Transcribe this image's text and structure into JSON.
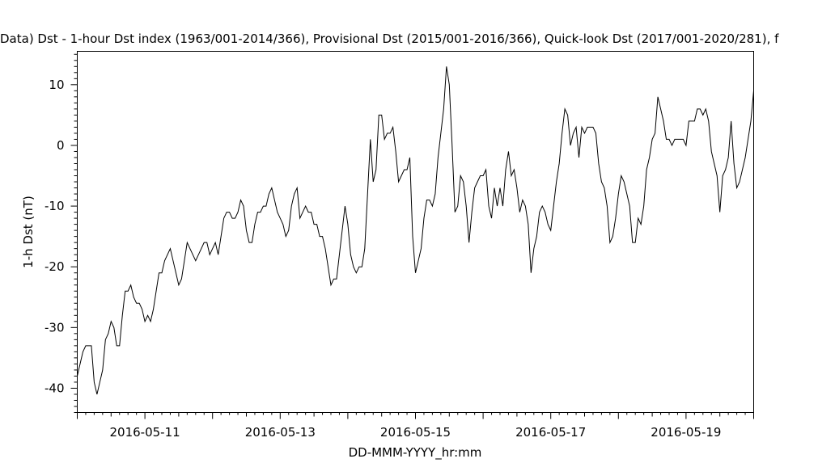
{
  "chart_data": {
    "type": "line",
    "title": "Data)  Dst - 1-hour Dst index (1963/001-2014/366), Provisional Dst (2015/001-2016/366), Quick-look Dst (2017/001-2020/281), f",
    "xlabel": "DD-MMM-YYYY_hr:mm",
    "ylabel": "1-h Dst (nT)",
    "xlim": [
      "2016-05-10T00:00",
      "2016-05-20T00:00"
    ],
    "ylim": [
      -44,
      15.5
    ],
    "x_ticks": [
      "2016-05-11",
      "2016-05-13",
      "2016-05-15",
      "2016-05-17",
      "2016-05-19"
    ],
    "y_ticks": [
      "10",
      "0",
      "-10",
      "-20",
      "-30",
      "-40"
    ],
    "grid": false,
    "line_color": "#000000",
    "series": [
      {
        "x_start": "2016-05-10T00:00",
        "x_step_hours": 1,
        "values": [
          -38,
          -36,
          -34,
          -33,
          -33,
          -33,
          -39,
          -41,
          -39,
          -37,
          -32,
          -31,
          -29,
          -30,
          -33,
          -33,
          -28,
          -24,
          -24,
          -23,
          -25,
          -26,
          -26,
          -27,
          -29,
          -28,
          -29,
          -27,
          -24,
          -21,
          -21,
          -19,
          -18,
          -17,
          -19,
          -21,
          -23,
          -22,
          -19,
          -16,
          -17,
          -18,
          -19,
          -18,
          -17,
          -16,
          -16,
          -18,
          -17,
          -16,
          -18,
          -15,
          -12,
          -11,
          -11,
          -12,
          -12,
          -11,
          -9,
          -10,
          -14,
          -16,
          -16,
          -13,
          -11,
          -11,
          -10,
          -10,
          -8,
          -7,
          -9,
          -11,
          -12,
          -13,
          -15,
          -14,
          -10,
          -8,
          -7,
          -12,
          -11,
          -10,
          -11,
          -11,
          -13,
          -13,
          -15,
          -15,
          -17,
          -20,
          -23,
          -22,
          -22,
          -18,
          -14,
          -10,
          -13,
          -18,
          -20,
          -21,
          -20,
          -20,
          -17,
          -8,
          1,
          -6,
          -4,
          5,
          5,
          1,
          2,
          2,
          3,
          -1,
          -6,
          -5,
          -4,
          -4,
          -2,
          -15,
          -21,
          -19,
          -17,
          -12,
          -9,
          -9,
          -10,
          -8,
          -2,
          2,
          6,
          13,
          10,
          0,
          -11,
          -10,
          -5,
          -6,
          -10,
          -16,
          -11,
          -7,
          -6,
          -5,
          -5,
          -4,
          -10,
          -12,
          -7,
          -10,
          -7,
          -10,
          -4,
          -1,
          -5,
          -4,
          -7,
          -11,
          -9,
          -10,
          -13,
          -21,
          -17,
          -15,
          -11,
          -10,
          -11,
          -13,
          -14,
          -10,
          -6,
          -3,
          2,
          6,
          5,
          0,
          2,
          3,
          -2,
          3,
          2,
          3,
          3,
          3,
          2,
          -3,
          -6,
          -7,
          -10,
          -16,
          -15,
          -12,
          -8,
          -5,
          -6,
          -8,
          -10,
          -16,
          -16,
          -12,
          -13,
          -10,
          -4,
          -2,
          1,
          2,
          8,
          6,
          4,
          1,
          1,
          0,
          1,
          1,
          1,
          1,
          0,
          4,
          4,
          4,
          6,
          6,
          5,
          6,
          4,
          -1,
          -3,
          -5,
          -11,
          -5,
          -4,
          -2,
          4,
          -3,
          -7,
          -6,
          -4,
          -2,
          1,
          4,
          9
        ]
      }
    ]
  }
}
